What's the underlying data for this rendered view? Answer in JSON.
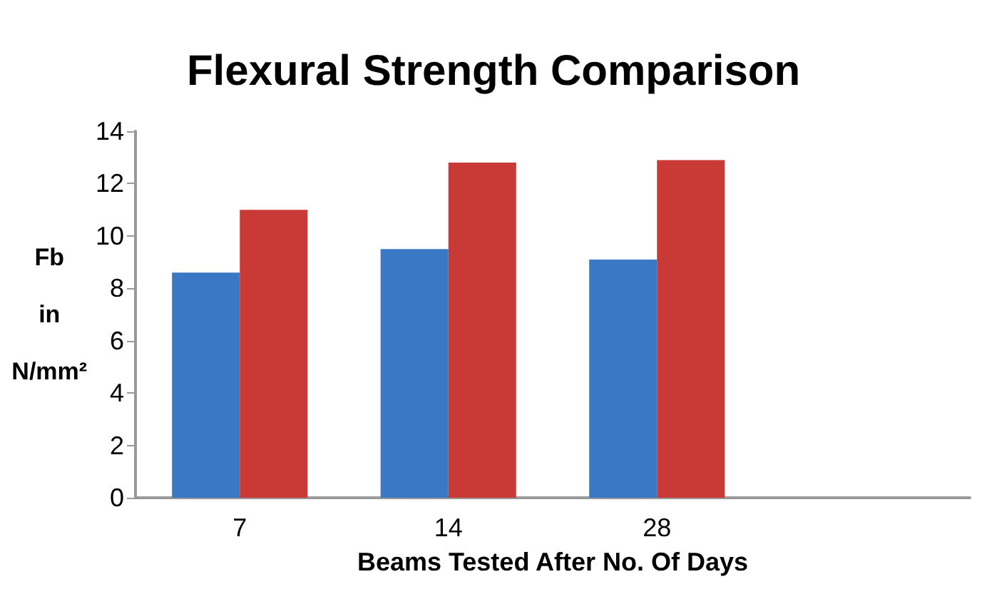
{
  "chart_data": {
    "type": "bar",
    "title": "Flexural Strength Comparison",
    "xlabel": "Beams Tested After No. Of Days",
    "ylabel": "Fb in N/mm²",
    "categories": [
      "7",
      "14",
      "28",
      null
    ],
    "series": [
      {
        "color": "#3a78c6",
        "values": [
          8.6,
          9.5,
          9.1,
          null
        ]
      },
      {
        "color": "#c93a37",
        "values": [
          11.0,
          12.8,
          12.9,
          null
        ]
      }
    ],
    "ylim": [
      0,
      14
    ],
    "yticks": [
      0,
      2,
      4,
      6,
      8,
      10,
      12,
      14
    ],
    "grid": false
  }
}
